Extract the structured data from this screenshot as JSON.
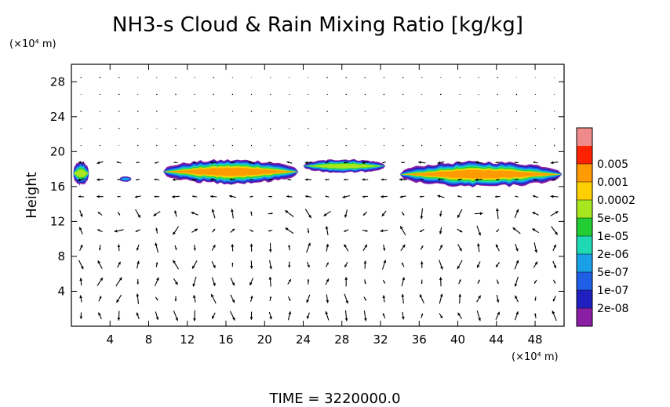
{
  "chart_data": {
    "type": "contour+vector",
    "title": "NH3-s Cloud & Rain Mixing Ratio [kg/kg]",
    "ylabel": "Height",
    "y_unit": "(×10⁴ m)",
    "x_unit": "(×10⁴ m)",
    "xlim": [
      0,
      51
    ],
    "ylim": [
      0,
      30
    ],
    "x_ticks": [
      "4",
      "8",
      "12",
      "16",
      "20",
      "24",
      "28",
      "32",
      "36",
      "40",
      "44",
      "48"
    ],
    "y_ticks": [
      "4",
      "8",
      "12",
      "16",
      "20",
      "24",
      "28"
    ],
    "x_tick_values": [
      4,
      8,
      12,
      16,
      20,
      24,
      28,
      32,
      36,
      40,
      44,
      48
    ],
    "y_tick_values": [
      4,
      8,
      12,
      16,
      20,
      24,
      28
    ],
    "colorbar": {
      "levels": [
        "2e-08",
        "1e-07",
        "5e-07",
        "2e-06",
        "1e-05",
        "5e-05",
        "0.0002",
        "0.001",
        "0.005"
      ],
      "colors": [
        "#8a1fa6",
        "#2020c0",
        "#1f5fe6",
        "#1aa0e6",
        "#1fd9b5",
        "#22cc33",
        "#a8e61f",
        "#ffd000",
        "#ff9a00",
        "#ff2200",
        "#f08a8a"
      ]
    },
    "cloud_layers": [
      {
        "x_start": 0.2,
        "x_end": 1.8,
        "y_bottom": 16.0,
        "y_top": 19.0,
        "max_level": 6
      },
      {
        "x_start": 5.0,
        "x_end": 6.2,
        "y_bottom": 16.5,
        "y_top": 17.2,
        "max_level": 3
      },
      {
        "x_start": 9.5,
        "x_end": 23.5,
        "y_bottom": 16.2,
        "y_top": 19.2,
        "max_level": 8
      },
      {
        "x_start": 24.0,
        "x_end": 32.5,
        "y_bottom": 17.5,
        "y_top": 19.2,
        "max_level": 6
      },
      {
        "x_start": 34.0,
        "x_end": 50.8,
        "y_bottom": 15.8,
        "y_top": 19.0,
        "max_level": 8
      }
    ]
  },
  "footer": {
    "time_label": "TIME  =  3220000.0"
  }
}
